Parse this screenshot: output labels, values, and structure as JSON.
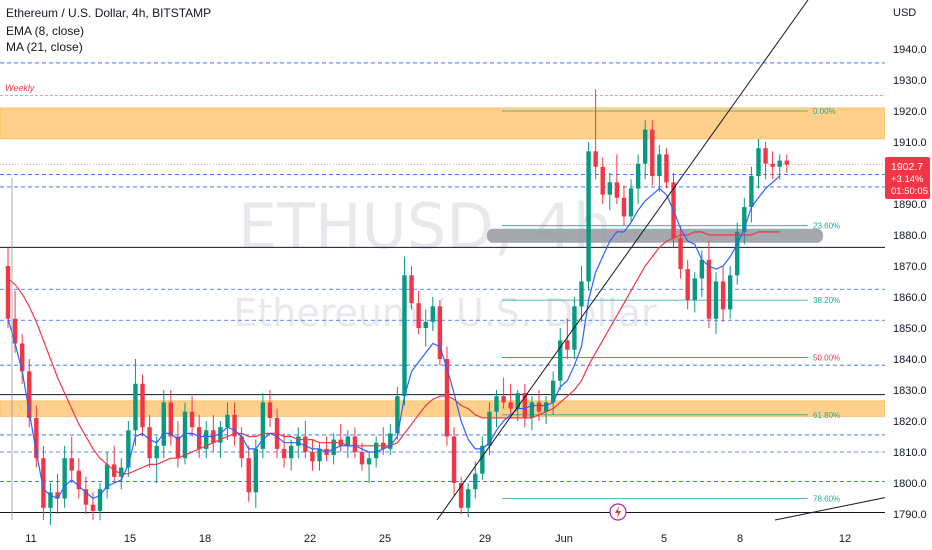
{
  "legend": {
    "title": "Ethereum / U.S. Dollar, 4h, BITSTAMP",
    "ema": "EMA (8, close)",
    "ma": "MA (21, close)"
  },
  "watermark": {
    "symbol": "ETHUSD, 4h",
    "name": "Ethereum / U.S. Dollar"
  },
  "price_tag": {
    "price": "1902.7",
    "change": "+3.14%",
    "countdown": "01:50:05",
    "color": "#f23645"
  },
  "colors": {
    "up": "#089981",
    "down": "#f23645",
    "ema": "#2962ff",
    "ma": "#f23645",
    "zone": "#ffcc80",
    "grid_dash": "#2962ff",
    "fib": "#26a69a"
  },
  "chart_data": {
    "type": "candlestick",
    "currency": "USD",
    "ylim": [
      1788,
      1948
    ],
    "y_ticks": [
      1790,
      1800,
      1810,
      1820,
      1830,
      1840,
      1850,
      1860,
      1870,
      1880,
      1890,
      1900,
      1910,
      1920,
      1930,
      1940
    ],
    "x_ticks": [
      "11",
      "15",
      "18",
      "22",
      "25",
      "29",
      "Jun",
      "5",
      "8",
      "12"
    ],
    "last_price": 1902.7,
    "annotations": [
      {
        "text": "Weekly",
        "price": 1925
      }
    ],
    "zones": [
      {
        "from": 1911,
        "to": 1921,
        "style": "orange"
      },
      {
        "from": 1821.5,
        "to": 1826.5,
        "style": "orange"
      },
      {
        "from": 1877.5,
        "to": 1882,
        "style": "gray"
      }
    ],
    "horizontal_lines": [
      {
        "price": 1876,
        "style": "solid"
      },
      {
        "price": 1828.5,
        "style": "solid"
      },
      {
        "price": 1790.5,
        "style": "solid"
      }
    ],
    "dashed_levels": [
      1935.5,
      1899.5,
      1895.5,
      1862.5,
      1852.5,
      1838,
      1815.5,
      1810,
      1800.5
    ],
    "fib": [
      {
        "label": "0.00%",
        "price": 1920,
        "color": "#26a69a"
      },
      {
        "label": "23.60%",
        "price": 1883,
        "color": "#26a69a"
      },
      {
        "label": "38.20%",
        "price": 1859,
        "color": "#26a69a"
      },
      {
        "label": "50.00%",
        "price": 1840.5,
        "color": "#f23645"
      },
      {
        "label": "61.80%",
        "price": 1822,
        "color": "#26a69a"
      },
      {
        "label": "78.60%",
        "price": 1795,
        "color": "#26a69a"
      }
    ],
    "candles": [
      [
        1870,
        1876,
        1850,
        1853
      ],
      [
        1853,
        1862,
        1842,
        1845
      ],
      [
        1845,
        1848,
        1832,
        1836
      ],
      [
        1836,
        1840,
        1818,
        1821
      ],
      [
        1821,
        1825,
        1805,
        1808
      ],
      [
        1808,
        1812,
        1788,
        1792
      ],
      [
        1792,
        1800,
        1785,
        1797
      ],
      [
        1797,
        1803,
        1790,
        1795
      ],
      [
        1795,
        1812,
        1792,
        1808
      ],
      [
        1808,
        1815,
        1800,
        1804
      ],
      [
        1804,
        1808,
        1795,
        1798
      ],
      [
        1798,
        1802,
        1790,
        1793
      ],
      [
        1793,
        1797,
        1788,
        1791
      ],
      [
        1791,
        1800,
        1788,
        1798
      ],
      [
        1798,
        1810,
        1795,
        1806
      ],
      [
        1806,
        1812,
        1800,
        1802
      ],
      [
        1802,
        1808,
        1798,
        1805
      ],
      [
        1805,
        1820,
        1802,
        1817
      ],
      [
        1817,
        1840,
        1812,
        1832
      ],
      [
        1832,
        1835,
        1815,
        1818
      ],
      [
        1818,
        1822,
        1805,
        1808
      ],
      [
        1808,
        1815,
        1800,
        1812
      ],
      [
        1812,
        1830,
        1808,
        1826
      ],
      [
        1826,
        1830,
        1812,
        1815
      ],
      [
        1815,
        1820,
        1805,
        1808
      ],
      [
        1808,
        1826,
        1806,
        1823
      ],
      [
        1823,
        1828,
        1815,
        1818
      ],
      [
        1818,
        1822,
        1808,
        1811
      ],
      [
        1811,
        1820,
        1808,
        1817
      ],
      [
        1817,
        1822,
        1810,
        1813
      ],
      [
        1813,
        1820,
        1808,
        1818
      ],
      [
        1818,
        1826,
        1814,
        1822
      ],
      [
        1822,
        1826,
        1812,
        1815
      ],
      [
        1815,
        1818,
        1805,
        1808
      ],
      [
        1808,
        1812,
        1794,
        1797
      ],
      [
        1797,
        1814,
        1792,
        1811
      ],
      [
        1811,
        1829,
        1808,
        1826
      ],
      [
        1826,
        1830,
        1818,
        1821
      ],
      [
        1821,
        1824,
        1808,
        1811
      ],
      [
        1811,
        1816,
        1805,
        1808
      ],
      [
        1808,
        1814,
        1804,
        1812
      ],
      [
        1812,
        1818,
        1808,
        1815
      ],
      [
        1815,
        1820,
        1808,
        1810
      ],
      [
        1810,
        1814,
        1804,
        1807
      ],
      [
        1807,
        1813,
        1804,
        1811
      ],
      [
        1811,
        1815,
        1807,
        1809
      ],
      [
        1809,
        1816,
        1806,
        1814
      ],
      [
        1814,
        1819,
        1810,
        1812
      ],
      [
        1812,
        1817,
        1808,
        1815
      ],
      [
        1815,
        1818,
        1808,
        1810
      ],
      [
        1810,
        1813,
        1804,
        1806
      ],
      [
        1806,
        1810,
        1800,
        1808
      ],
      [
        1808,
        1815,
        1805,
        1813
      ],
      [
        1813,
        1818,
        1809,
        1811
      ],
      [
        1811,
        1819,
        1809,
        1816
      ],
      [
        1816,
        1831,
        1814,
        1828
      ],
      [
        1828,
        1873,
        1825,
        1867
      ],
      [
        1867,
        1870,
        1856,
        1858
      ],
      [
        1858,
        1862,
        1848,
        1850
      ],
      [
        1850,
        1856,
        1844,
        1852
      ],
      [
        1852,
        1860,
        1849,
        1857
      ],
      [
        1857,
        1859,
        1838,
        1840
      ],
      [
        1840,
        1844,
        1812,
        1815
      ],
      [
        1815,
        1818,
        1796,
        1800
      ],
      [
        1800,
        1802,
        1790,
        1792
      ],
      [
        1792,
        1800,
        1789,
        1798
      ],
      [
        1798,
        1807,
        1795,
        1803
      ],
      [
        1803,
        1815,
        1801,
        1812
      ],
      [
        1812,
        1826,
        1809,
        1823
      ],
      [
        1823,
        1830,
        1818,
        1828
      ],
      [
        1828,
        1834,
        1824,
        1826
      ],
      [
        1826,
        1832,
        1821,
        1824
      ],
      [
        1824,
        1830,
        1820,
        1829
      ],
      [
        1829,
        1832,
        1818,
        1821
      ],
      [
        1821,
        1828,
        1817,
        1826
      ],
      [
        1826,
        1830,
        1820,
        1823
      ],
      [
        1823,
        1828,
        1819,
        1826
      ],
      [
        1826,
        1836,
        1822,
        1833
      ],
      [
        1833,
        1850,
        1830,
        1846
      ],
      [
        1846,
        1853,
        1840,
        1843
      ],
      [
        1843,
        1860,
        1840,
        1857
      ],
      [
        1857,
        1870,
        1852,
        1865
      ],
      [
        1865,
        1910,
        1862,
        1907
      ],
      [
        1907,
        1927,
        1898,
        1902
      ],
      [
        1902,
        1905,
        1890,
        1893
      ],
      [
        1893,
        1900,
        1888,
        1897
      ],
      [
        1897,
        1906,
        1890,
        1892
      ],
      [
        1892,
        1896,
        1883,
        1886
      ],
      [
        1886,
        1898,
        1884,
        1895
      ],
      [
        1895,
        1906,
        1890,
        1903
      ],
      [
        1903,
        1917,
        1898,
        1914
      ],
      [
        1914,
        1917,
        1896,
        1899
      ],
      [
        1899,
        1909,
        1894,
        1906
      ],
      [
        1906,
        1908,
        1895,
        1897
      ],
      [
        1897,
        1900,
        1876,
        1879
      ],
      [
        1879,
        1883,
        1866,
        1869
      ],
      [
        1869,
        1872,
        1856,
        1859
      ],
      [
        1859,
        1868,
        1855,
        1866
      ],
      [
        1866,
        1875,
        1860,
        1872
      ],
      [
        1872,
        1878,
        1850,
        1853
      ],
      [
        1853,
        1868,
        1848,
        1865
      ],
      [
        1865,
        1870,
        1852,
        1856
      ],
      [
        1856,
        1870,
        1853,
        1867
      ],
      [
        1867,
        1884,
        1864,
        1881
      ],
      [
        1881,
        1892,
        1877,
        1889
      ],
      [
        1889,
        1902,
        1884,
        1899
      ],
      [
        1899,
        1911,
        1895,
        1908
      ],
      [
        1908,
        1910,
        1898,
        1903
      ],
      [
        1903,
        1907,
        1898,
        1902
      ],
      [
        1902,
        1906,
        1898,
        1904
      ],
      [
        1904,
        1906,
        1900,
        1902.7
      ]
    ],
    "ema_8": [
      1853,
      1845,
      1836,
      1823,
      1810,
      1798,
      1796,
      1795,
      1799,
      1801,
      1799,
      1797,
      1795,
      1796,
      1799,
      1800,
      1801,
      1806,
      1815,
      1816,
      1814,
      1813,
      1816,
      1816,
      1814,
      1816,
      1816,
      1815,
      1815,
      1815,
      1816,
      1818,
      1817,
      1815,
      1811,
      1811,
      1814,
      1816,
      1815,
      1813,
      1813,
      1813,
      1812,
      1811,
      1811,
      1810,
      1811,
      1812,
      1812,
      1812,
      1811,
      1810,
      1810,
      1811,
      1812,
      1815,
      1828,
      1836,
      1839,
      1842,
      1845,
      1844,
      1837,
      1829,
      1820,
      1814,
      1811,
      1811,
      1813,
      1817,
      1820,
      1822,
      1824,
      1824,
      1825,
      1825,
      1825,
      1826,
      1831,
      1833,
      1838,
      1844,
      1859,
      1868,
      1873,
      1878,
      1881,
      1881,
      1884,
      1888,
      1891,
      1893,
      1895,
      1893,
      1888,
      1882,
      1878,
      1877,
      1872,
      1870,
      1869,
      1870,
      1873,
      1877,
      1882,
      1889,
      1892,
      1895,
      1897,
      1899
    ],
    "ma_21": [
      1866,
      1864,
      1861,
      1857,
      1852,
      1846,
      1840,
      1834,
      1829,
      1824,
      1819,
      1815,
      1811,
      1808,
      1806,
      1804,
      1803,
      1803,
      1804,
      1805,
      1806,
      1806,
      1807,
      1808,
      1808,
      1809,
      1810,
      1811,
      1812,
      1813,
      1814,
      1815,
      1816,
      1816,
      1815,
      1815,
      1816,
      1816,
      1816,
      1815,
      1815,
      1814,
      1814,
      1814,
      1813,
      1813,
      1813,
      1813,
      1812,
      1812,
      1812,
      1812,
      1812,
      1812,
      1812,
      1813,
      1816,
      1819,
      1822,
      1825,
      1827,
      1828,
      1828,
      1827,
      1825,
      1824,
      1822,
      1821,
      1821,
      1821,
      1821,
      1821,
      1821,
      1821,
      1821,
      1822,
      1823,
      1824,
      1826,
      1828,
      1830,
      1833,
      1838,
      1842,
      1846,
      1850,
      1854,
      1858,
      1862,
      1866,
      1870,
      1873,
      1876,
      1878,
      1879,
      1880,
      1880,
      1881,
      1881,
      1880,
      1880,
      1880,
      1880,
      1880,
      1880,
      1880,
      1881,
      1881,
      1881,
      1881
    ]
  }
}
